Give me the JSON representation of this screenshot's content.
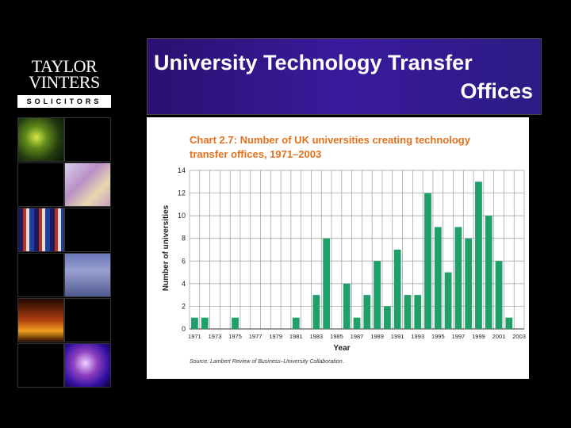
{
  "logo": {
    "line1": "TAYLOR",
    "line2": "VINTERS",
    "tagline": "SOLICITORS"
  },
  "slide": {
    "title_line1": "University Technology Transfer",
    "title_line2": "Offices"
  },
  "colors": {
    "bar": "#1fa069",
    "chart_title": "#e5701b",
    "title_bg": "#3a1a9c"
  },
  "chart_data": {
    "type": "bar",
    "title": "Chart 2.7: Number of UK universities creating technology transfer offices, 1971–2003",
    "xlabel": "Year",
    "ylabel": "Number of universities",
    "ylim": [
      0,
      14
    ],
    "yticks": [
      0,
      2,
      4,
      6,
      8,
      10,
      12,
      14
    ],
    "xtick_labels": [
      "1971",
      "1973",
      "1975",
      "1977",
      "1979",
      "1981",
      "1983",
      "1985",
      "1987",
      "1989",
      "1991",
      "1993",
      "1995",
      "1997",
      "1999",
      "2001",
      "2003"
    ],
    "categories": [
      "1971",
      "1972",
      "1973",
      "1974",
      "1975",
      "1976",
      "1977",
      "1978",
      "1979",
      "1980",
      "1981",
      "1982",
      "1983",
      "1984",
      "1985",
      "1986",
      "1987",
      "1988",
      "1989",
      "1990",
      "1991",
      "1992",
      "1993",
      "1994",
      "1995",
      "1996",
      "1997",
      "1998",
      "1999",
      "2000",
      "2001",
      "2002",
      "2003"
    ],
    "values": [
      1,
      1,
      0,
      0,
      1,
      0,
      0,
      0,
      0,
      0,
      1,
      0,
      3,
      8,
      0,
      4,
      1,
      3,
      6,
      2,
      7,
      3,
      3,
      12,
      9,
      5,
      9,
      8,
      13,
      10,
      6,
      1,
      0
    ],
    "source": "Source: Lambert Review of Business–University Collaboration.",
    "grid": true
  }
}
